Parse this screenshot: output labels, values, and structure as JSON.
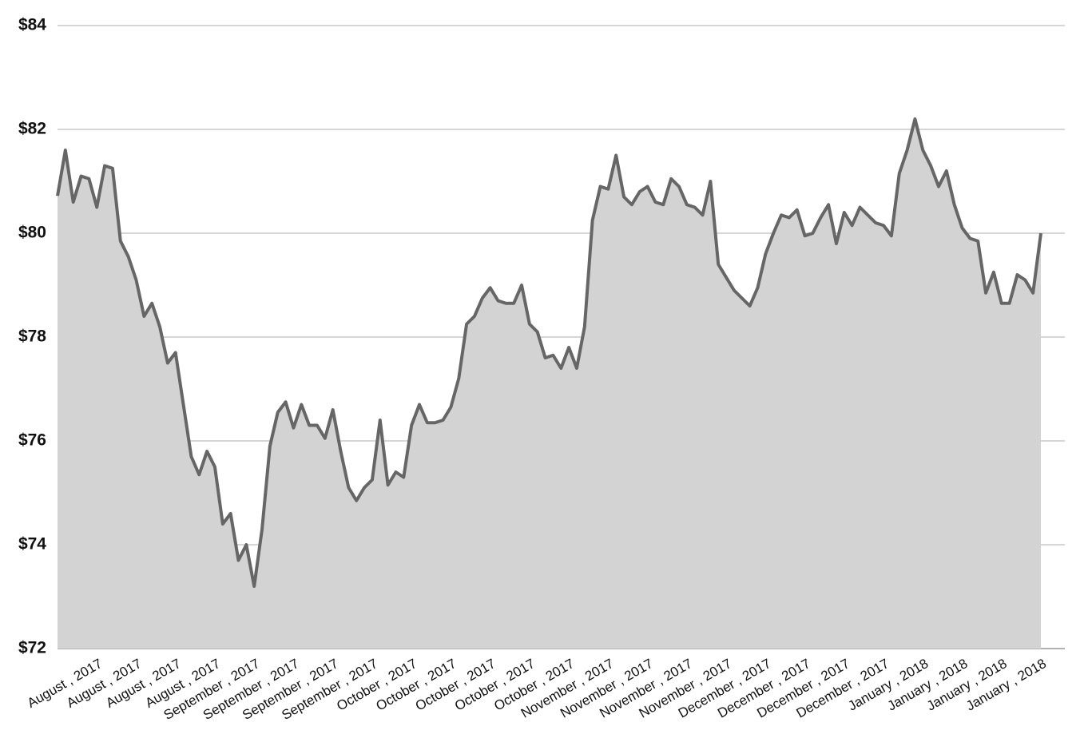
{
  "chart_data": {
    "type": "area",
    "categories": [
      null,
      null,
      null,
      null,
      null,
      "August , 2017",
      null,
      null,
      null,
      null,
      "August , 2017",
      null,
      null,
      null,
      null,
      "August , 2017",
      null,
      null,
      null,
      null,
      "August , 2017",
      null,
      null,
      null,
      null,
      "September , 2017",
      null,
      null,
      null,
      null,
      "September , 2017",
      null,
      null,
      null,
      null,
      "September , 2017",
      null,
      null,
      null,
      null,
      "September , 2017",
      null,
      null,
      null,
      null,
      "October , 2017",
      null,
      null,
      null,
      null,
      "October , 2017",
      null,
      null,
      null,
      null,
      "October , 2017",
      null,
      null,
      null,
      null,
      "October , 2017",
      null,
      null,
      null,
      null,
      "October , 2017",
      null,
      null,
      null,
      null,
      "November , 2017",
      null,
      null,
      null,
      null,
      "November , 2017",
      null,
      null,
      null,
      null,
      "November , 2017",
      null,
      null,
      null,
      null,
      "November , 2017",
      null,
      null,
      null,
      null,
      "December , 2017",
      null,
      null,
      null,
      null,
      "December , 2017",
      null,
      null,
      null,
      null,
      "December , 2017",
      null,
      null,
      null,
      null,
      "December , 2017",
      null,
      null,
      null,
      null,
      "January , 2018",
      null,
      null,
      null,
      null,
      "January , 2018",
      null,
      null,
      null,
      null,
      "January , 2018",
      null,
      null,
      null,
      null,
      "January , 2018"
    ],
    "values": [
      80.72,
      81.6,
      80.6,
      81.1,
      81.05,
      80.5,
      81.3,
      81.25,
      79.85,
      79.55,
      79.1,
      78.4,
      78.65,
      78.2,
      77.5,
      77.7,
      76.7,
      75.7,
      75.35,
      75.8,
      75.5,
      74.4,
      74.6,
      73.7,
      74.0,
      73.2,
      74.3,
      75.9,
      76.55,
      76.75,
      76.25,
      76.7,
      76.3,
      76.3,
      76.05,
      76.6,
      75.8,
      75.1,
      74.85,
      75.1,
      75.25,
      76.4,
      75.15,
      75.4,
      75.3,
      76.3,
      76.7,
      76.35,
      76.35,
      76.4,
      76.65,
      77.2,
      78.25,
      78.4,
      78.75,
      78.95,
      78.7,
      78.65,
      78.65,
      79.0,
      78.25,
      78.1,
      77.6,
      77.65,
      77.4,
      77.8,
      77.4,
      78.2,
      80.25,
      80.9,
      80.85,
      81.5,
      80.7,
      80.55,
      80.8,
      80.9,
      80.6,
      80.55,
      81.05,
      80.9,
      80.55,
      80.5,
      80.35,
      81.0,
      79.4,
      79.15,
      78.9,
      78.75,
      78.6,
      78.95,
      79.6,
      80.0,
      80.35,
      80.3,
      80.45,
      79.95,
      80.0,
      80.3,
      80.55,
      79.8,
      80.4,
      80.15,
      80.5,
      80.35,
      80.2,
      80.15,
      79.95,
      81.15,
      81.6,
      82.2,
      81.6,
      81.3,
      80.9,
      81.2,
      80.55,
      80.1,
      79.9,
      79.85,
      78.85,
      79.25,
      78.65,
      78.65,
      79.2,
      79.1,
      78.85,
      80.0
    ],
    "color": "#666666",
    "fill": "#d3d3d3",
    "ylim": [
      72,
      84
    ],
    "yticks": [
      {
        "value": 72,
        "label": "$72"
      },
      {
        "value": 74,
        "label": "$74"
      },
      {
        "value": 76,
        "label": "$76"
      },
      {
        "value": 78,
        "label": "$78"
      },
      {
        "value": 80,
        "label": "$80"
      },
      {
        "value": 82,
        "label": "$82"
      },
      {
        "value": 84,
        "label": "$84"
      }
    ],
    "grid": true
  }
}
